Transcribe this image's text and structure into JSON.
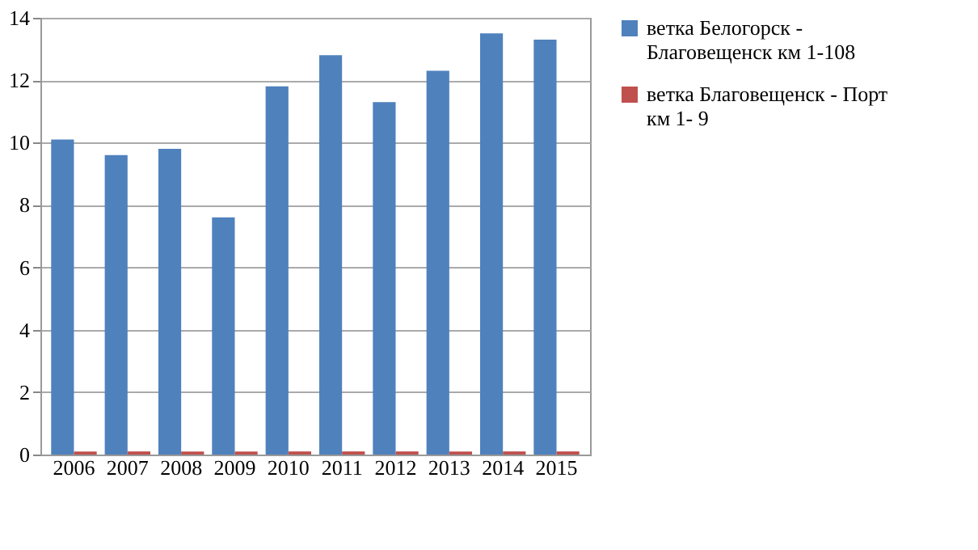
{
  "chart_data": {
    "type": "bar",
    "categories": [
      "2006",
      "2007",
      "2008",
      "2009",
      "2010",
      "2011",
      "2012",
      "2013",
      "2014",
      "2015"
    ],
    "series": [
      {
        "name": "ветка Белогорск - Благовещенск  км 1-108",
        "color": "#4f81bd",
        "values": [
          10.1,
          9.6,
          9.8,
          7.6,
          11.8,
          12.8,
          11.3,
          12.3,
          13.5,
          13.3
        ]
      },
      {
        "name": "ветка Благовещенск - Порт км 1- 9",
        "color": "#c0504d",
        "values": [
          0.1,
          0.1,
          0.1,
          0.1,
          0.1,
          0.1,
          0.1,
          0.1,
          0.1,
          0.1
        ]
      }
    ],
    "ylim": [
      0,
      14
    ],
    "yticks": [
      0,
      2,
      4,
      6,
      8,
      10,
      12,
      14
    ],
    "grid": "y",
    "legend": "right"
  }
}
